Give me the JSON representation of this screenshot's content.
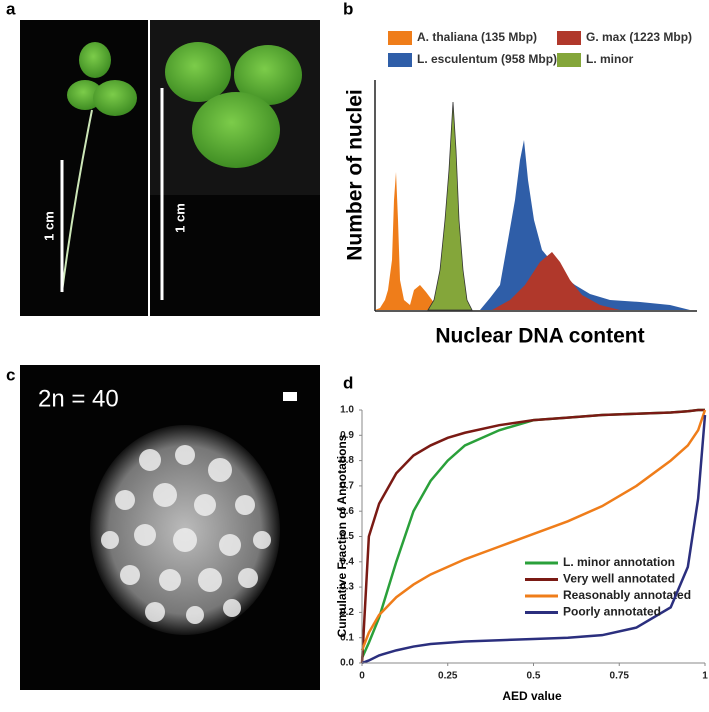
{
  "panels": [
    "a",
    "b",
    "c",
    "d"
  ],
  "panel_a": {
    "scale_labels": [
      "1 cm",
      "1 cm"
    ]
  },
  "panel_b": {
    "legend": [
      "A. thaliana (135 Mbp)",
      "G. max (1223 Mbp)",
      "L. esculentum (958 Mbp)",
      "L. minor"
    ],
    "y_label": "Number of nuclei",
    "x_label": "Nuclear DNA content"
  },
  "panel_c": {
    "label": "2n = 40"
  },
  "chart_data": {
    "type": "line",
    "x_label": "AED value",
    "y_label": "Cumulative Fraction of Annotations",
    "x": [
      0,
      0.02,
      0.05,
      0.1,
      0.15,
      0.2,
      0.25,
      0.3,
      0.4,
      0.5,
      0.6,
      0.7,
      0.8,
      0.9,
      0.95,
      0.98,
      1
    ],
    "series": [
      {
        "name": "L. minor annotation",
        "color": "#2aa03a",
        "values": [
          0.02,
          0.08,
          0.18,
          0.4,
          0.6,
          0.72,
          0.8,
          0.86,
          0.92,
          0.96,
          0.97,
          0.98,
          0.985,
          0.99,
          0.995,
          1.0,
          1.0
        ]
      },
      {
        "name": "Very well annotated",
        "color": "#7a1a14",
        "values": [
          0,
          0.5,
          0.63,
          0.75,
          0.82,
          0.86,
          0.89,
          0.91,
          0.94,
          0.96,
          0.97,
          0.98,
          0.985,
          0.99,
          0.995,
          1.0,
          1.0
        ]
      },
      {
        "name": "Reasonably annotated",
        "color": "#ef7d1a",
        "values": [
          0.05,
          0.12,
          0.19,
          0.26,
          0.31,
          0.35,
          0.38,
          0.41,
          0.46,
          0.51,
          0.56,
          0.62,
          0.7,
          0.8,
          0.86,
          0.92,
          1.0
        ]
      },
      {
        "name": "Poorly annotated",
        "color": "#2b2f7e",
        "values": [
          0,
          0.01,
          0.03,
          0.05,
          0.065,
          0.075,
          0.08,
          0.085,
          0.09,
          0.095,
          0.1,
          0.11,
          0.14,
          0.22,
          0.38,
          0.65,
          0.98
        ]
      }
    ],
    "xlim": [
      0,
      1
    ],
    "ylim": [
      0,
      1
    ],
    "xticks": [
      0,
      0.25,
      0.5,
      0.75,
      1
    ],
    "yticks": [
      {
        "value": 0,
        "label": "0.0"
      },
      0.1,
      0.2,
      0.3,
      0.4,
      0.5,
      0.6,
      0.7,
      0.8,
      0.9,
      {
        "value": 1,
        "label": "1.0"
      }
    ]
  }
}
